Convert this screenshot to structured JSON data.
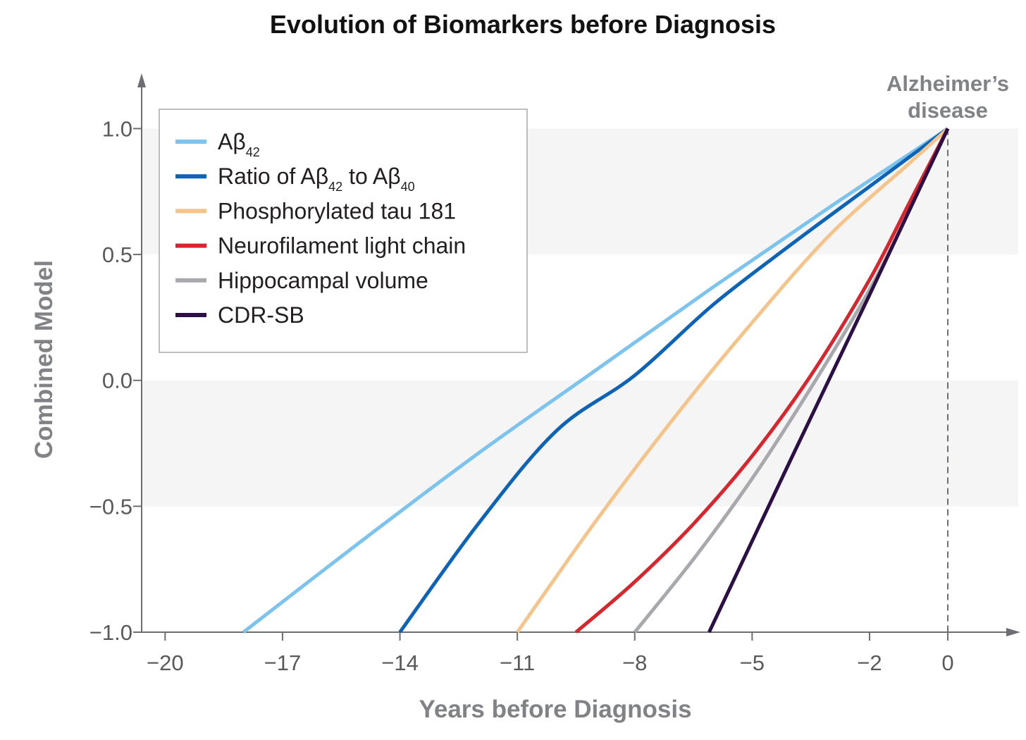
{
  "chart_data": {
    "type": "line",
    "title": "Evolution of Biomarkers before Diagnosis",
    "xlabel": "Years before Diagnosis",
    "ylabel": "Combined Model",
    "xlim": [
      -20.6,
      1.8
    ],
    "ylim": [
      -1.0,
      1.2
    ],
    "x_ticks": [
      -20,
      -17,
      -14,
      -11,
      -8,
      -5,
      -2,
      0
    ],
    "x_tick_labels": [
      "−20",
      "−17",
      "−14",
      "−11",
      "−8",
      "−5",
      "−2",
      "0"
    ],
    "y_ticks": [
      1.0,
      0.5,
      0.0,
      -0.5,
      -1.0
    ],
    "y_tick_labels": [
      "1.0",
      "0.5",
      "0.0",
      "−0.5",
      "−1.0"
    ],
    "bands": [
      [
        0.5,
        1.0
      ],
      [
        -0.5,
        0.0
      ]
    ],
    "legend_position": "top-left",
    "annotation": {
      "x": 0,
      "lines": [
        "Alzheimer’s",
        "disease"
      ]
    },
    "series": [
      {
        "name": "Aβ42",
        "name_parts": [
          "Aβ",
          "42"
        ],
        "color": "#7cc3ee",
        "x": [
          -18.0,
          -15.0,
          -12.0,
          -9.0,
          -6.0,
          -3.0,
          0.0
        ],
        "y": [
          -1.0,
          -0.64,
          -0.29,
          0.04,
          0.37,
          0.69,
          1.0
        ]
      },
      {
        "name": "Ratio of Aβ42 to Aβ40",
        "name_parts": [
          "Ratio of Aβ",
          "42",
          " to Aβ",
          "40"
        ],
        "color": "#0d63b5",
        "x": [
          -14.0,
          -12.0,
          -10.0,
          -8.0,
          -6.0,
          -4.0,
          -2.0,
          0.0
        ],
        "y": [
          -1.0,
          -0.57,
          -0.2,
          0.02,
          0.3,
          0.54,
          0.77,
          1.0
        ]
      },
      {
        "name": "Phosphorylated tau 181",
        "name_parts": [
          "Phosphorylated tau 181"
        ],
        "color": "#f5c48a",
        "x": [
          -11.0,
          -9.0,
          -7.0,
          -5.0,
          -3.0,
          -1.0,
          0.0
        ],
        "y": [
          -1.0,
          -0.56,
          -0.15,
          0.23,
          0.58,
          0.86,
          1.0
        ]
      },
      {
        "name": "Neurofilament light chain",
        "name_parts": [
          "Neurofilament light chain"
        ],
        "color": "#d7262e",
        "x": [
          -9.5,
          -8.0,
          -6.5,
          -5.0,
          -3.5,
          -2.0,
          -1.0,
          0.0
        ],
        "y": [
          -1.0,
          -0.8,
          -0.57,
          -0.3,
          0.02,
          0.4,
          0.7,
          1.0
        ]
      },
      {
        "name": "Hippocampal volume",
        "name_parts": [
          "Hippocampal volume"
        ],
        "color": "#a7a9ac",
        "x": [
          -8.0,
          -6.5,
          -5.0,
          -3.5,
          -2.0,
          -1.0,
          0.0
        ],
        "y": [
          -1.0,
          -0.71,
          -0.39,
          -0.03,
          0.36,
          0.67,
          1.0
        ]
      },
      {
        "name": "CDR-SB",
        "name_parts": [
          "CDR-SB"
        ],
        "color": "#2b0f45",
        "x": [
          -6.1,
          -4.0,
          -2.0,
          0.0
        ],
        "y": [
          -1.0,
          -0.31,
          0.34,
          1.0
        ]
      }
    ]
  }
}
